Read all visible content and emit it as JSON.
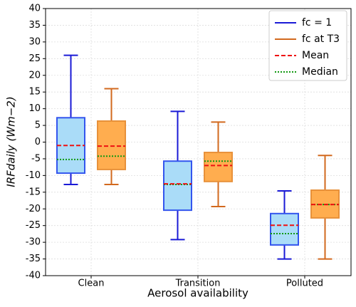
{
  "chart_data": {
    "type": "box",
    "xlabel": "Aerosol availability",
    "ylabel": "IRFdaily (Wm−2)",
    "categories": [
      "Clean",
      "Transition",
      "Polluted"
    ],
    "ylim": [
      -40,
      40
    ],
    "yticks": [
      -40,
      -35,
      -30,
      -25,
      -20,
      -15,
      -10,
      -5,
      0,
      5,
      10,
      15,
      20,
      25,
      30,
      35,
      40
    ],
    "grid": true,
    "legend_position": "upper right",
    "series": [
      {
        "name": "fc = 1",
        "color": "#1a1ad6",
        "box_fill": "#aadcf8",
        "box_edge": "#3355ee",
        "whislo": [
          -12.7,
          -29.2,
          -35
        ],
        "q1": [
          -9.3,
          -20.4,
          -30.8
        ],
        "median": [
          -5.2,
          -12.7,
          -27.4
        ],
        "mean": [
          -1,
          -12.5,
          -24.9
        ],
        "q3": [
          7.3,
          -5.7,
          -21.4
        ],
        "whishi": [
          26,
          9.2,
          -14.6
        ]
      },
      {
        "name": "fc at T3",
        "color": "#d2691e",
        "box_fill": "#ffad4f",
        "box_edge": "#e8913a",
        "whislo": [
          -12.7,
          -19.3,
          -35
        ],
        "q1": [
          -8.2,
          -11.8,
          -22.7
        ],
        "median": [
          -4.2,
          -5.7,
          -18.7
        ],
        "mean": [
          -1.2,
          -7,
          -18.7
        ],
        "q3": [
          6.3,
          -3.1,
          -14.4
        ],
        "whishi": [
          16,
          6,
          -4
        ]
      }
    ],
    "mean_line": {
      "name": "Mean",
      "color": "#ee1111"
    },
    "median_line": {
      "name": "Median",
      "color": "#119911"
    }
  }
}
